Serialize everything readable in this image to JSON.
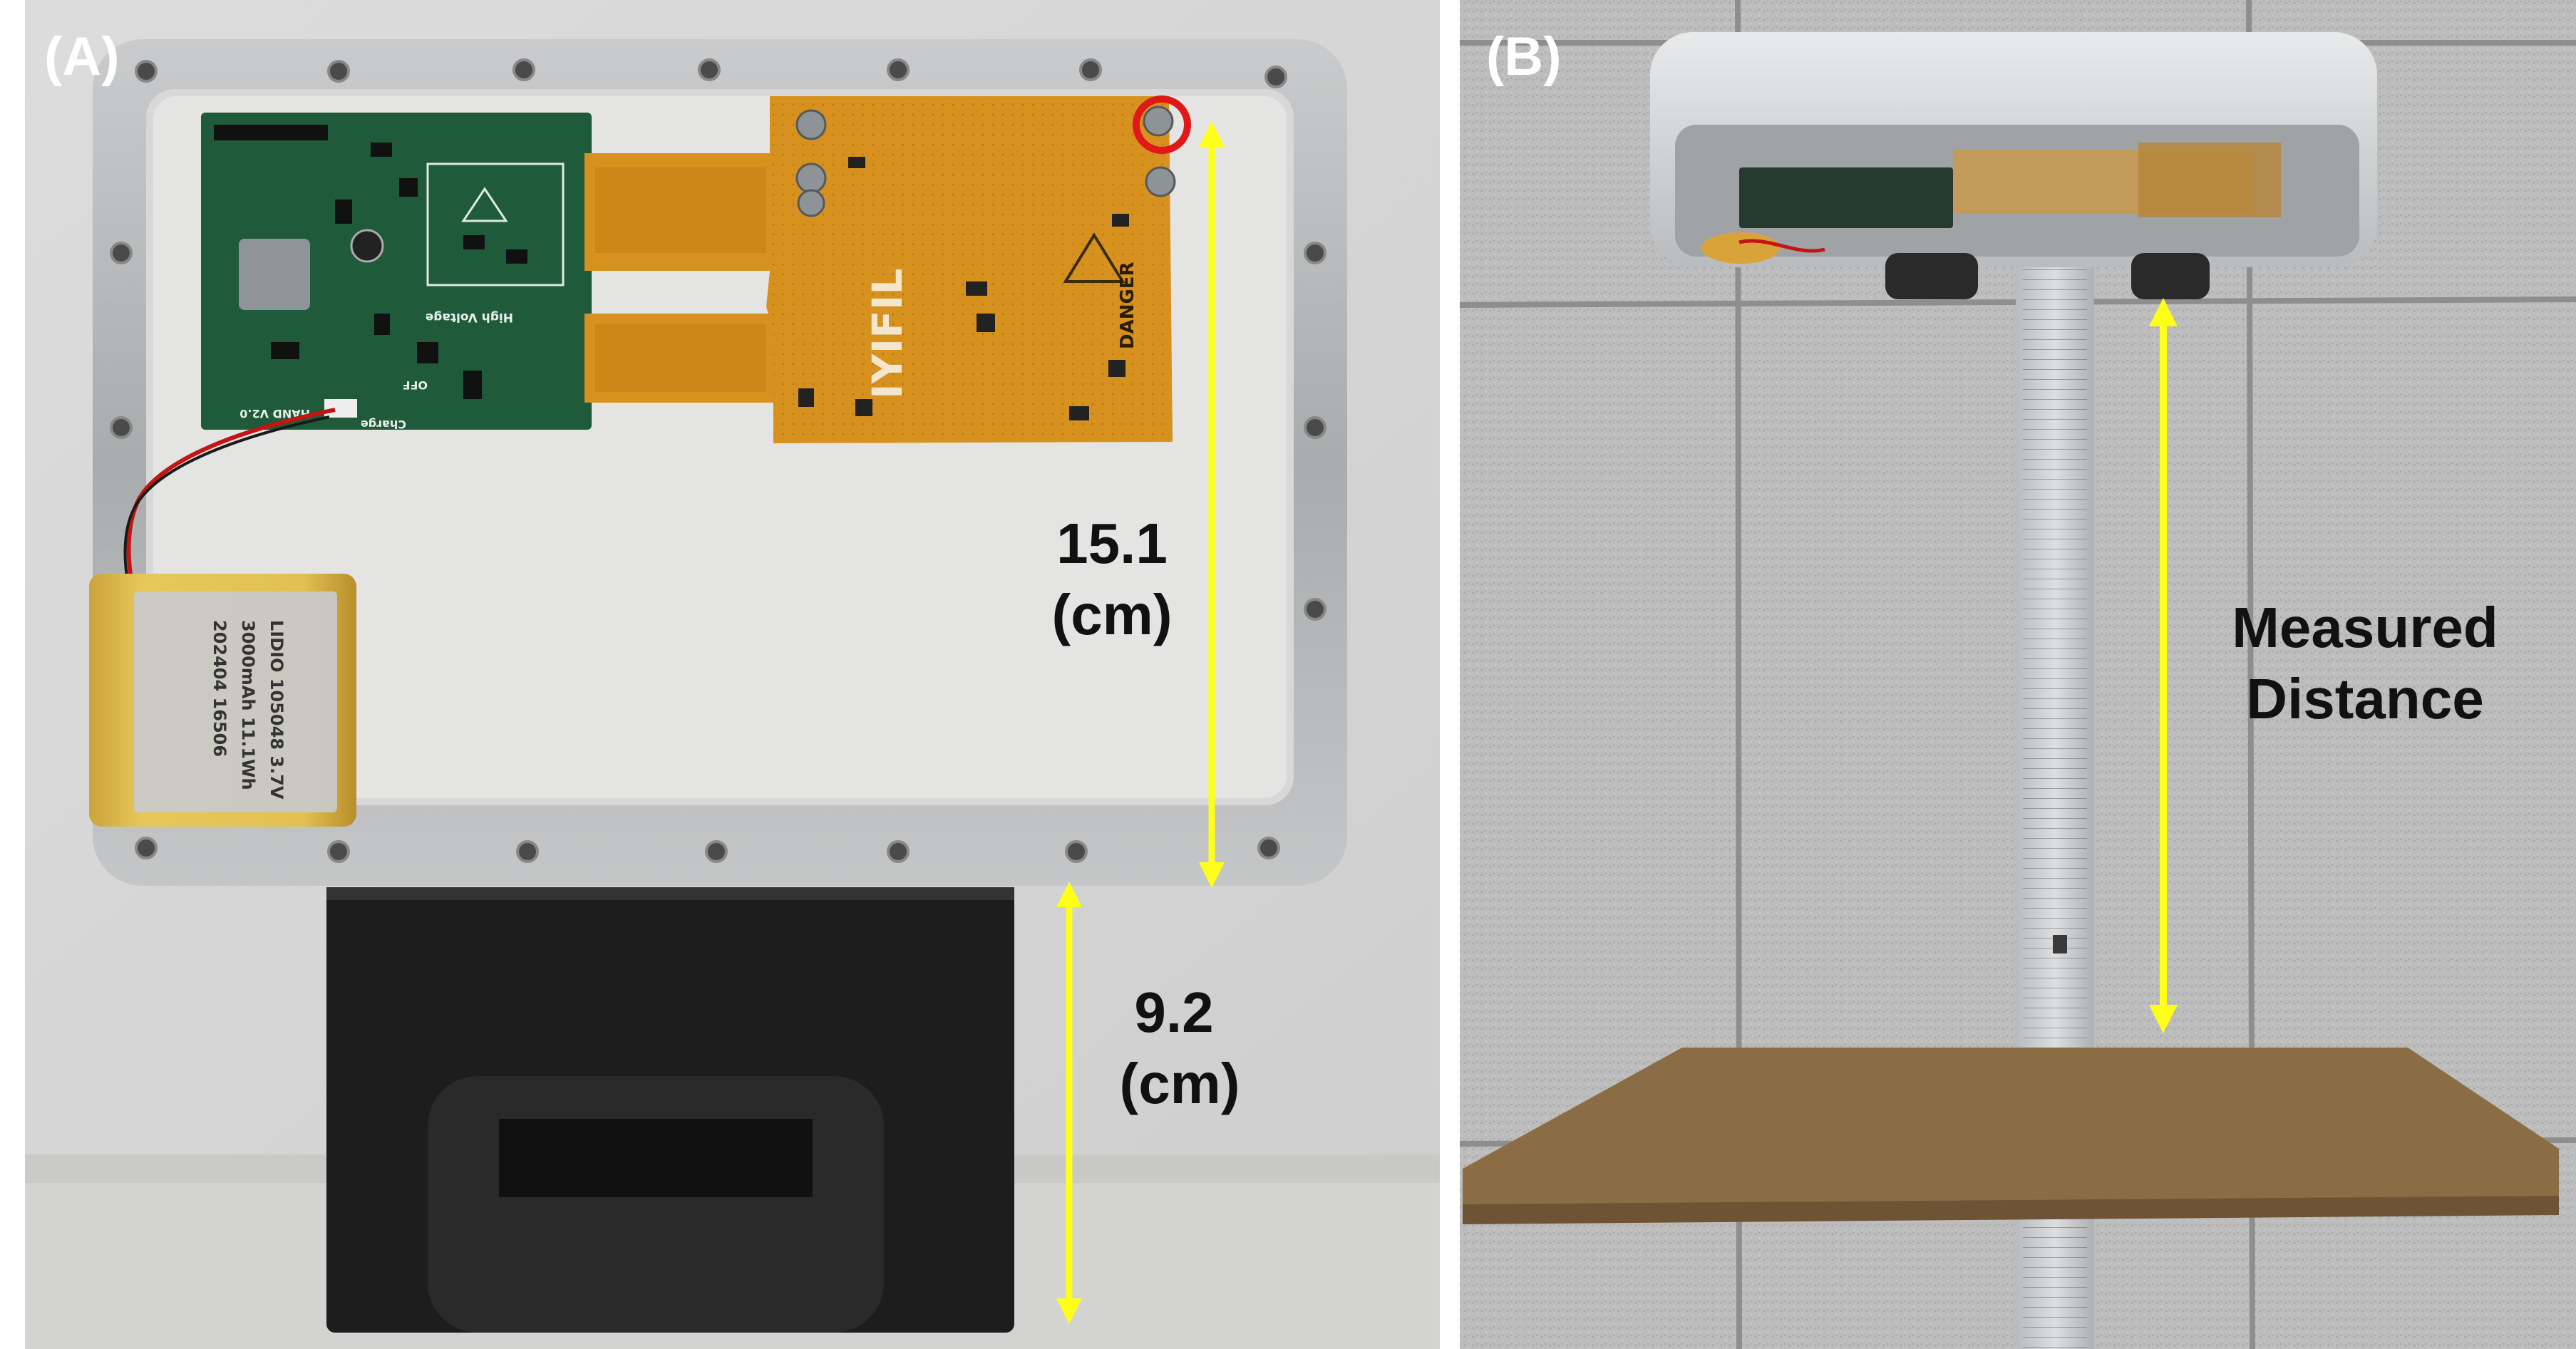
{
  "figure": {
    "panel_a": {
      "label": "(A)",
      "measurement_top_value": "15.1",
      "measurement_top_unit": "(cm)",
      "measurement_bottom_value": "9.2",
      "measurement_bottom_unit": "(cm)",
      "pcb_silkscreen": [
        "High Voltage",
        "Charge",
        "OFF",
        "HAND V2.0"
      ],
      "flex_logo": "IYIFIL",
      "warning_label": "DANGER",
      "battery_label": [
        "LIDIO 105048 3.7V",
        "3000mAh 11.1Wh",
        "202404 16506"
      ]
    },
    "panel_b": {
      "label": "(B)",
      "annotation_line1": "Measured",
      "annotation_line2": "Distance"
    },
    "colors": {
      "annotation_arrow": "#ffff1a",
      "highlight_circle": "#e01818",
      "pcb_green": "#1f5a3a",
      "flex_orange": "#d7911f",
      "frame_silver": "#b9bcbd"
    }
  }
}
